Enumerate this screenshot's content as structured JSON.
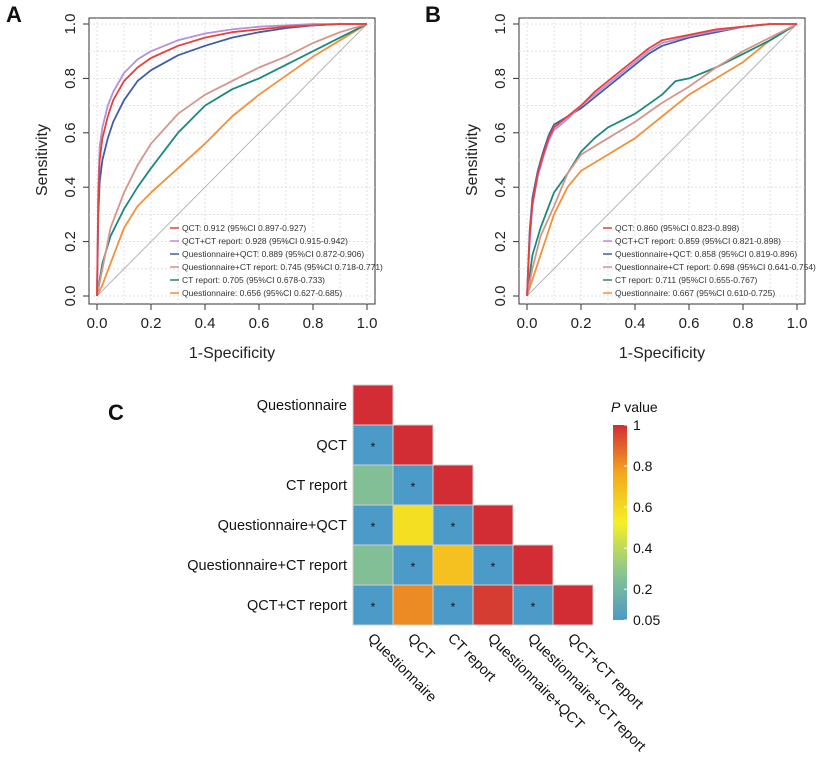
{
  "panel_labels": {
    "a": "A",
    "b": "B",
    "c": "C"
  },
  "chart_data": [
    {
      "id": "A",
      "type": "line",
      "xlabel": "1-Specificity",
      "ylabel": "Sensitivity",
      "xlim": [
        0,
        1
      ],
      "ylim": [
        0,
        1
      ],
      "ticks": [
        "0.0",
        "0.2",
        "0.4",
        "0.6",
        "0.8",
        "1.0"
      ],
      "grid": true,
      "legend_position": "bottom-right",
      "series": [
        {
          "name": "QCT",
          "label": "QCT: 0.912 (95%CI 0.897-0.927)",
          "color": "#e8413a",
          "points": [
            [
              0,
              0
            ],
            [
              0.005,
              0.35
            ],
            [
              0.01,
              0.5
            ],
            [
              0.02,
              0.58
            ],
            [
              0.04,
              0.66
            ],
            [
              0.06,
              0.72
            ],
            [
              0.1,
              0.79
            ],
            [
              0.15,
              0.84
            ],
            [
              0.2,
              0.875
            ],
            [
              0.3,
              0.92
            ],
            [
              0.4,
              0.95
            ],
            [
              0.5,
              0.97
            ],
            [
              0.6,
              0.98
            ],
            [
              0.7,
              0.99
            ],
            [
              0.8,
              0.995
            ],
            [
              0.9,
              1
            ],
            [
              1,
              1
            ]
          ]
        },
        {
          "name": "QCT+CT report",
          "label": "QCT+CT report: 0.928 (95%CI 0.915-0.942)",
          "color": "#b890d6",
          "points": [
            [
              0,
              0
            ],
            [
              0.005,
              0.4
            ],
            [
              0.01,
              0.55
            ],
            [
              0.02,
              0.62
            ],
            [
              0.04,
              0.7
            ],
            [
              0.06,
              0.75
            ],
            [
              0.1,
              0.82
            ],
            [
              0.15,
              0.87
            ],
            [
              0.2,
              0.9
            ],
            [
              0.3,
              0.94
            ],
            [
              0.4,
              0.965
            ],
            [
              0.5,
              0.98
            ],
            [
              0.6,
              0.99
            ],
            [
              0.7,
              0.995
            ],
            [
              0.8,
              1
            ],
            [
              1,
              1
            ]
          ]
        },
        {
          "name": "Questionnaire+QCT",
          "label": "Questionnaire+QCT: 0.889 (95%CI 0.872-0.906)",
          "color": "#3f5ea8",
          "points": [
            [
              0,
              0
            ],
            [
              0.005,
              0.3
            ],
            [
              0.01,
              0.42
            ],
            [
              0.02,
              0.5
            ],
            [
              0.04,
              0.58
            ],
            [
              0.06,
              0.64
            ],
            [
              0.1,
              0.72
            ],
            [
              0.15,
              0.79
            ],
            [
              0.2,
              0.83
            ],
            [
              0.3,
              0.885
            ],
            [
              0.4,
              0.92
            ],
            [
              0.5,
              0.95
            ],
            [
              0.6,
              0.97
            ],
            [
              0.7,
              0.985
            ],
            [
              0.8,
              0.995
            ],
            [
              0.9,
              1
            ],
            [
              1,
              1
            ]
          ]
        },
        {
          "name": "Questionnaire+CT report",
          "label": "Questionnaire+CT report: 0.745 (95%CI 0.718-0.771)",
          "color": "#d4968a",
          "points": [
            [
              0,
              0
            ],
            [
              0.02,
              0.1
            ],
            [
              0.05,
              0.25
            ],
            [
              0.1,
              0.38
            ],
            [
              0.15,
              0.48
            ],
            [
              0.2,
              0.56
            ],
            [
              0.3,
              0.67
            ],
            [
              0.4,
              0.74
            ],
            [
              0.5,
              0.79
            ],
            [
              0.6,
              0.84
            ],
            [
              0.7,
              0.88
            ],
            [
              0.8,
              0.93
            ],
            [
              0.9,
              0.97
            ],
            [
              1,
              1
            ]
          ]
        },
        {
          "name": "CT report",
          "label": "CT report: 0.705 (95%CI 0.678-0.733)",
          "color": "#1a8a80",
          "points": [
            [
              0,
              0
            ],
            [
              0.02,
              0.12
            ],
            [
              0.05,
              0.22
            ],
            [
              0.1,
              0.32
            ],
            [
              0.15,
              0.4
            ],
            [
              0.2,
              0.47
            ],
            [
              0.3,
              0.6
            ],
            [
              0.4,
              0.7
            ],
            [
              0.5,
              0.76
            ],
            [
              0.6,
              0.8
            ],
            [
              0.7,
              0.85
            ],
            [
              0.8,
              0.9
            ],
            [
              0.9,
              0.95
            ],
            [
              1,
              1
            ]
          ]
        },
        {
          "name": "Questionnaire",
          "label": "Questionnaire: 0.656 (95%CI 0.627-0.685)",
          "color": "#f2913d",
          "points": [
            [
              0,
              0
            ],
            [
              0.02,
              0.04
            ],
            [
              0.05,
              0.12
            ],
            [
              0.1,
              0.25
            ],
            [
              0.15,
              0.33
            ],
            [
              0.2,
              0.38
            ],
            [
              0.3,
              0.47
            ],
            [
              0.4,
              0.56
            ],
            [
              0.5,
              0.66
            ],
            [
              0.6,
              0.74
            ],
            [
              0.7,
              0.81
            ],
            [
              0.8,
              0.88
            ],
            [
              0.9,
              0.94
            ],
            [
              1,
              1
            ]
          ]
        }
      ]
    },
    {
      "id": "B",
      "type": "line",
      "xlabel": "1-Specificity",
      "ylabel": "Sensitivity",
      "xlim": [
        0,
        1
      ],
      "ylim": [
        0,
        1
      ],
      "ticks": [
        "0.0",
        "0.2",
        "0.4",
        "0.6",
        "0.8",
        "1.0"
      ],
      "grid": true,
      "legend_position": "bottom-right",
      "series": [
        {
          "name": "QCT",
          "label": "QCT: 0.860 (95%CI 0.823-0.898)",
          "color": "#e8413a",
          "points": [
            [
              0,
              0
            ],
            [
              0.01,
              0.22
            ],
            [
              0.02,
              0.34
            ],
            [
              0.04,
              0.45
            ],
            [
              0.06,
              0.52
            ],
            [
              0.08,
              0.58
            ],
            [
              0.1,
              0.62
            ],
            [
              0.15,
              0.66
            ],
            [
              0.2,
              0.7
            ],
            [
              0.25,
              0.75
            ],
            [
              0.3,
              0.79
            ],
            [
              0.35,
              0.83
            ],
            [
              0.4,
              0.87
            ],
            [
              0.45,
              0.91
            ],
            [
              0.5,
              0.94
            ],
            [
              0.6,
              0.96
            ],
            [
              0.7,
              0.98
            ],
            [
              0.8,
              0.99
            ],
            [
              0.9,
              1
            ],
            [
              1,
              1
            ]
          ]
        },
        {
          "name": "QCT+CT report",
          "label": "QCT+CT report: 0.859 (95%CI 0.821-0.898)",
          "color": "#b890d6",
          "points": [
            [
              0,
              0
            ],
            [
              0.01,
              0.2
            ],
            [
              0.02,
              0.33
            ],
            [
              0.04,
              0.44
            ],
            [
              0.06,
              0.51
            ],
            [
              0.08,
              0.57
            ],
            [
              0.1,
              0.61
            ],
            [
              0.15,
              0.65
            ],
            [
              0.2,
              0.7
            ],
            [
              0.25,
              0.74
            ],
            [
              0.3,
              0.78
            ],
            [
              0.35,
              0.82
            ],
            [
              0.4,
              0.86
            ],
            [
              0.45,
              0.9
            ],
            [
              0.5,
              0.93
            ],
            [
              0.6,
              0.955
            ],
            [
              0.7,
              0.975
            ],
            [
              0.8,
              0.99
            ],
            [
              0.9,
              1
            ],
            [
              1,
              1
            ]
          ]
        },
        {
          "name": "Questionnaire+QCT",
          "label": "Questionnaire+QCT: 0.858 (95%CI 0.819-0.896)",
          "color": "#3f5ea8",
          "points": [
            [
              0,
              0
            ],
            [
              0.01,
              0.24
            ],
            [
              0.02,
              0.36
            ],
            [
              0.04,
              0.46
            ],
            [
              0.06,
              0.53
            ],
            [
              0.08,
              0.59
            ],
            [
              0.1,
              0.63
            ],
            [
              0.15,
              0.66
            ],
            [
              0.2,
              0.69
            ],
            [
              0.25,
              0.73
            ],
            [
              0.3,
              0.77
            ],
            [
              0.35,
              0.81
            ],
            [
              0.4,
              0.85
            ],
            [
              0.45,
              0.89
            ],
            [
              0.5,
              0.92
            ],
            [
              0.6,
              0.95
            ],
            [
              0.7,
              0.97
            ],
            [
              0.8,
              0.99
            ],
            [
              0.9,
              1
            ],
            [
              1,
              1
            ]
          ]
        },
        {
          "name": "Questionnaire+CT report",
          "label": "Questionnaire+CT report: 0.698 (95%CI 0.641-0.754)",
          "color": "#d4968a",
          "points": [
            [
              0,
              0
            ],
            [
              0.02,
              0.1
            ],
            [
              0.05,
              0.22
            ],
            [
              0.1,
              0.33
            ],
            [
              0.15,
              0.45
            ],
            [
              0.2,
              0.52
            ],
            [
              0.3,
              0.58
            ],
            [
              0.4,
              0.64
            ],
            [
              0.5,
              0.71
            ],
            [
              0.6,
              0.77
            ],
            [
              0.7,
              0.84
            ],
            [
              0.8,
              0.9
            ],
            [
              0.9,
              0.95
            ],
            [
              1,
              1
            ]
          ]
        },
        {
          "name": "CT report",
          "label": "CT report: 0.711 (95%CI 0.655-0.767)",
          "color": "#1a8a80",
          "points": [
            [
              0,
              0
            ],
            [
              0.02,
              0.15
            ],
            [
              0.05,
              0.25
            ],
            [
              0.1,
              0.38
            ],
            [
              0.15,
              0.45
            ],
            [
              0.2,
              0.53
            ],
            [
              0.25,
              0.58
            ],
            [
              0.3,
              0.62
            ],
            [
              0.4,
              0.67
            ],
            [
              0.5,
              0.74
            ],
            [
              0.55,
              0.79
            ],
            [
              0.6,
              0.8
            ],
            [
              0.7,
              0.84
            ],
            [
              0.8,
              0.89
            ],
            [
              0.9,
              0.94
            ],
            [
              1,
              1
            ]
          ]
        },
        {
          "name": "Questionnaire",
          "label": "Questionnaire: 0.667 (95%CI 0.610-0.725)",
          "color": "#f2913d",
          "points": [
            [
              0,
              0
            ],
            [
              0.02,
              0.06
            ],
            [
              0.05,
              0.15
            ],
            [
              0.1,
              0.3
            ],
            [
              0.15,
              0.4
            ],
            [
              0.2,
              0.46
            ],
            [
              0.3,
              0.52
            ],
            [
              0.4,
              0.58
            ],
            [
              0.5,
              0.66
            ],
            [
              0.6,
              0.74
            ],
            [
              0.7,
              0.8
            ],
            [
              0.8,
              0.86
            ],
            [
              0.9,
              0.94
            ],
            [
              1,
              1
            ]
          ]
        }
      ]
    },
    {
      "id": "C",
      "type": "heatmap",
      "variables": [
        "Questionnaire",
        "QCT",
        "CT report",
        "Questionnaire+QCT",
        "Questionnaire+CT report",
        "QCT+CT report"
      ],
      "p_values": [
        [
          1
        ],
        [
          0.01,
          1
        ],
        [
          0.25,
          0.01,
          1
        ],
        [
          0.01,
          0.58,
          0.01,
          1
        ],
        [
          0.25,
          0.01,
          0.68,
          0.01,
          1
        ],
        [
          0.01,
          0.82,
          0.01,
          0.97,
          0.01,
          1
        ]
      ],
      "significant": [
        [
          false
        ],
        [
          true,
          false
        ],
        [
          false,
          true,
          false
        ],
        [
          true,
          false,
          true,
          false
        ],
        [
          false,
          true,
          false,
          true,
          false
        ],
        [
          true,
          false,
          true,
          false,
          true,
          false
        ]
      ],
      "significance_marker": "*",
      "colorbar": {
        "title_italic": "P",
        "title_rest": " value",
        "ticks": [
          "1",
          "0.8",
          "0.6",
          "0.4",
          "0.2",
          "0.05"
        ],
        "tick_values": [
          1,
          0.8,
          0.6,
          0.4,
          0.2,
          0.05
        ],
        "colors": [
          "#4b9ac8",
          "#8cc68e",
          "#f4f024",
          "#f4a81e",
          "#d22d35"
        ]
      }
    }
  ]
}
